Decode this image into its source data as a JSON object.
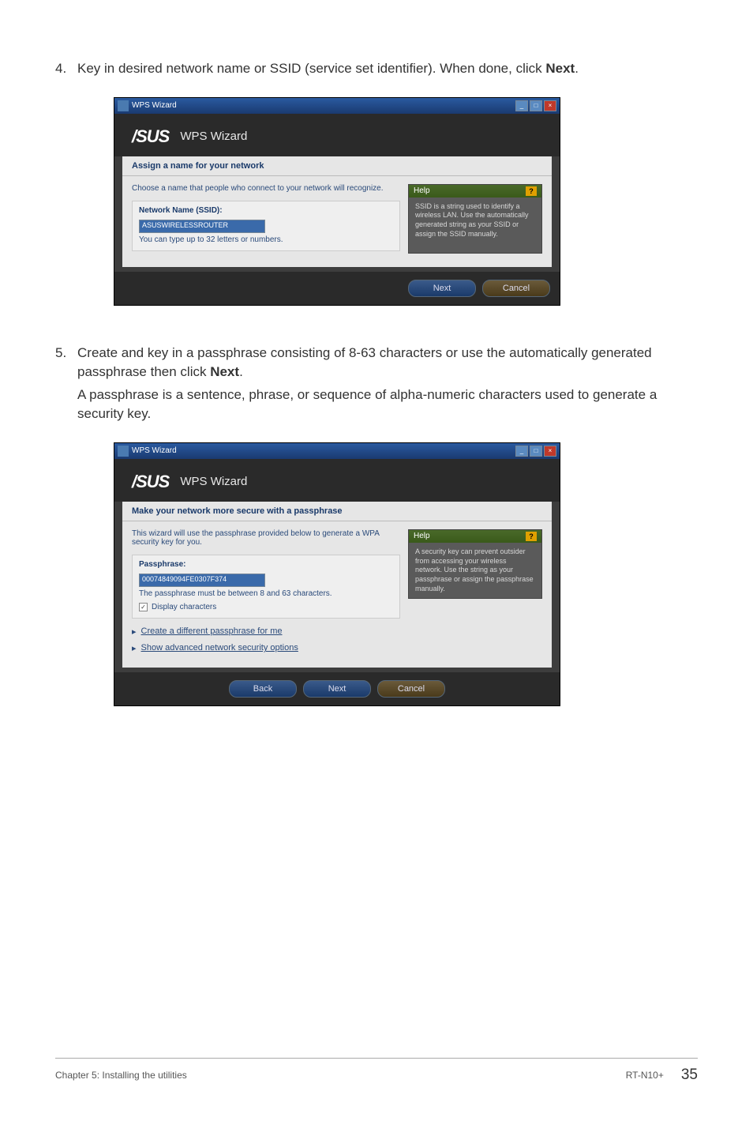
{
  "step4": {
    "num": "4.",
    "text_a": "Key in desired network name or SSID (service set identifier). When done, click ",
    "text_b": "Next",
    "text_c": "."
  },
  "step5": {
    "num": "5.",
    "text_a": "Create and key in a passphrase consisting of 8-63 characters or use the automatically generated passphrase then click ",
    "text_b": "Next",
    "text_c": ".",
    "text_d": "A passphrase is a sentence, phrase, or sequence of alpha-numeric characters used to generate a security key."
  },
  "wizard1": {
    "titlebar": "WPS Wizard",
    "logo": "/SUS",
    "header_title": "WPS Wizard",
    "section": "Assign a name for your network",
    "desc": "Choose a name that people who connect to your network will recognize.",
    "field_label": "Network Name (SSID):",
    "field_value": "ASUSWIRELESSROUTER",
    "hint": "You can type up to 32 letters or numbers.",
    "help_title": "Help",
    "help_body": "SSID is a string used to identify a wireless LAN. Use the automatically generated string as your SSID or assign the SSID manually.",
    "btn_next": "Next",
    "btn_cancel": "Cancel"
  },
  "wizard2": {
    "titlebar": "WPS Wizard",
    "logo": "/SUS",
    "header_title": "WPS Wizard",
    "section": "Make your network more secure with a passphrase",
    "desc": "This wizard will use the passphrase provided below to generate a WPA security key for you.",
    "field_label": "Passphrase:",
    "field_value": "00074849094FE0307F374",
    "hint": "The passphrase must be between 8 and 63 characters.",
    "checkbox_label": "Display characters",
    "checkbox_checked": "✓",
    "link1": "Create a different passphrase for me",
    "link2": "Show advanced network security options",
    "help_title": "Help",
    "help_body": "A security key can prevent outsider from accessing your wireless network. Use the string as your passphrase or assign the passphrase manually.",
    "btn_back": "Back",
    "btn_next": "Next",
    "btn_cancel": "Cancel"
  },
  "footer": {
    "left": "Chapter 5: Installing the utilities",
    "model": "RT-N10+",
    "page": "35"
  }
}
